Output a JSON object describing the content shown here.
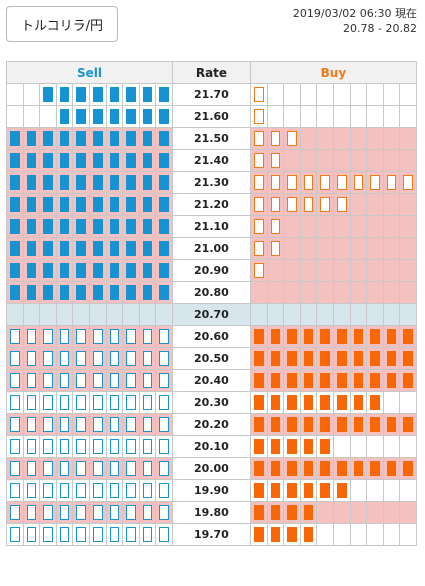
{
  "pair_button": "トルコリラ/円",
  "timestamp": "2019/03/02 06:30 現在",
  "bid_ask": "20.78 - 20.82",
  "headers": {
    "sell": "Sell",
    "rate": "Rate",
    "buy": "Buy"
  },
  "colors": {
    "sell": "#1693d0",
    "buy": "#f76706",
    "highlight": "#f4c0c0",
    "current": "#d7e6ec"
  },
  "rows": [
    {
      "rate": "21.70",
      "sell_filled": 8,
      "buy_outline": 1
    },
    {
      "rate": "21.60",
      "sell_filled": 7,
      "buy_outline": 1
    },
    {
      "rate": "21.50",
      "sell_filled": 10,
      "buy_outline": 3,
      "highlight": true
    },
    {
      "rate": "21.40",
      "sell_filled": 10,
      "buy_outline": 2,
      "highlight": true
    },
    {
      "rate": "21.30",
      "sell_filled": 10,
      "buy_outline": 10,
      "highlight": true
    },
    {
      "rate": "21.20",
      "sell_filled": 10,
      "buy_outline": 6,
      "highlight": true
    },
    {
      "rate": "21.10",
      "sell_filled": 10,
      "buy_outline": 2,
      "highlight": true
    },
    {
      "rate": "21.00",
      "sell_filled": 10,
      "buy_outline": 2,
      "highlight": true
    },
    {
      "rate": "20.90",
      "sell_filled": 10,
      "buy_outline": 1,
      "highlight": true
    },
    {
      "rate": "20.80",
      "sell_filled": 10,
      "buy_outline": 0,
      "highlight": true
    },
    {
      "rate": "20.70",
      "current": true
    },
    {
      "rate": "20.60",
      "sell_outline": 10,
      "buy_filled": 10,
      "highlight": true
    },
    {
      "rate": "20.50",
      "sell_outline": 10,
      "buy_filled": 10,
      "highlight": true
    },
    {
      "rate": "20.40",
      "sell_outline": 10,
      "buy_filled": 10,
      "highlight": true
    },
    {
      "rate": "20.30",
      "sell_outline": 10,
      "buy_filled": 8
    },
    {
      "rate": "20.20",
      "sell_outline": 10,
      "buy_filled": 10,
      "highlight": true
    },
    {
      "rate": "20.10",
      "sell_outline": 10,
      "buy_filled": 5
    },
    {
      "rate": "20.00",
      "sell_outline": 10,
      "buy_filled": 10,
      "highlight": true
    },
    {
      "rate": "19.90",
      "sell_outline": 10,
      "buy_filled": 6
    },
    {
      "rate": "19.80",
      "sell_outline": 10,
      "buy_filled": 4,
      "highlight": true
    },
    {
      "rate": "19.70",
      "sell_outline": 10,
      "buy_filled": 4
    }
  ]
}
